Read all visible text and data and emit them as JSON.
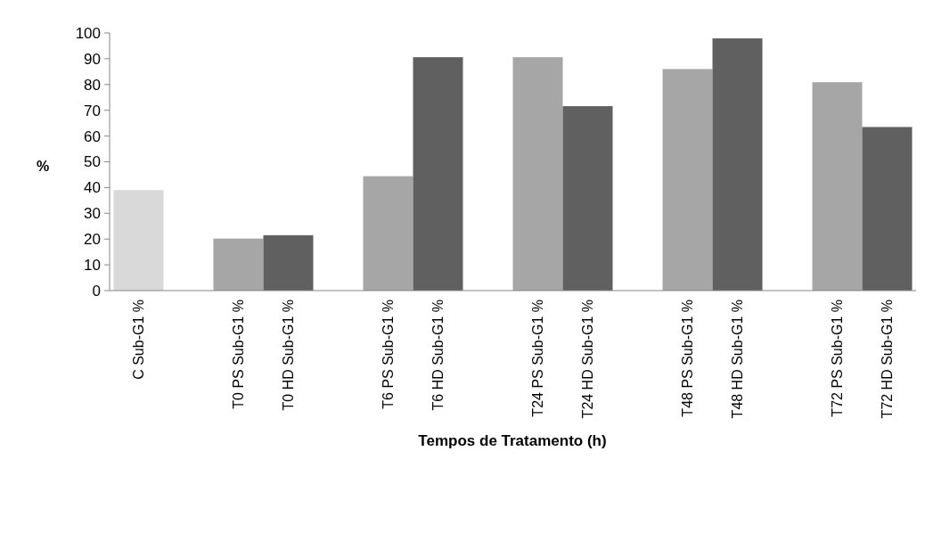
{
  "chart_data": {
    "type": "bar",
    "xlabel": "Tempos de Tratamento (h)",
    "ylabel": "%",
    "categories": [
      "C Sub-G1 %",
      null,
      "T0 PS Sub-G1 %",
      "T0 HD Sub-G1 %",
      null,
      "T6 PS Sub-G1 %",
      "T6 HD Sub-G1 %",
      null,
      "T24 PS Sub-G1 %",
      "T24 HD Sub-G1 %",
      null,
      "T48 PS Sub-G1 %",
      "T48 HD Sub-G1 %",
      null,
      "T72 PS Sub-G1 %",
      "T72 HD Sub-G1 %"
    ],
    "values": [
      39,
      null,
      20.2,
      21.5,
      null,
      44.4,
      90.6,
      null,
      90.6,
      71.6,
      null,
      86,
      97.9,
      null,
      80.9,
      63.5
    ],
    "colors": [
      "#d9d9d9",
      null,
      "#a6a6a6",
      "#606060",
      null,
      "#a6a6a6",
      "#606060",
      null,
      "#a6a6a6",
      "#606060",
      null,
      "#a6a6a6",
      "#606060",
      null,
      "#a6a6a6",
      "#606060"
    ],
    "ylim": [
      0,
      100
    ],
    "yticks": [
      0,
      10,
      20,
      30,
      40,
      50,
      60,
      70,
      80,
      90,
      100
    ],
    "grid": false
  }
}
